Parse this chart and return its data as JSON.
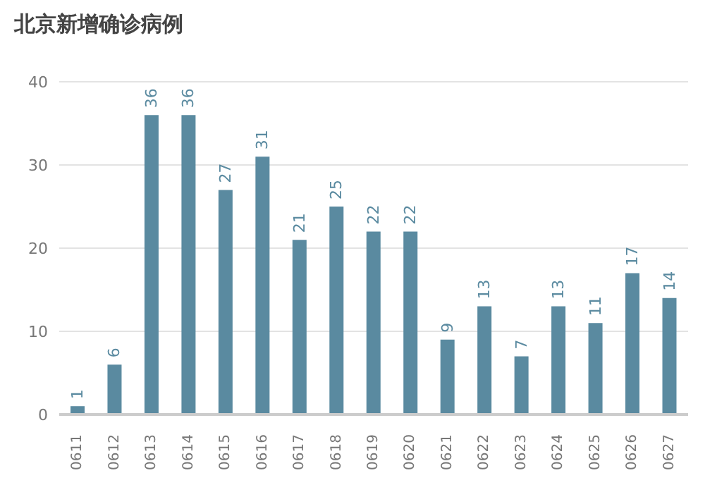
{
  "chart_data": {
    "type": "bar",
    "title": "北京新增确诊病例",
    "categories": [
      "0611",
      "0612",
      "0613",
      "0614",
      "0615",
      "0616",
      "0617",
      "0618",
      "0619",
      "0620",
      "0621",
      "0622",
      "0623",
      "0624",
      "0625",
      "0626",
      "0627"
    ],
    "values": [
      1,
      6,
      36,
      36,
      27,
      31,
      21,
      25,
      22,
      22,
      9,
      13,
      7,
      13,
      11,
      17,
      14
    ],
    "color": "#5a8aa0",
    "ylim": [
      0,
      40
    ],
    "yticks": [
      0,
      10,
      20,
      30,
      40
    ],
    "grid": "y",
    "data_labels": true
  }
}
